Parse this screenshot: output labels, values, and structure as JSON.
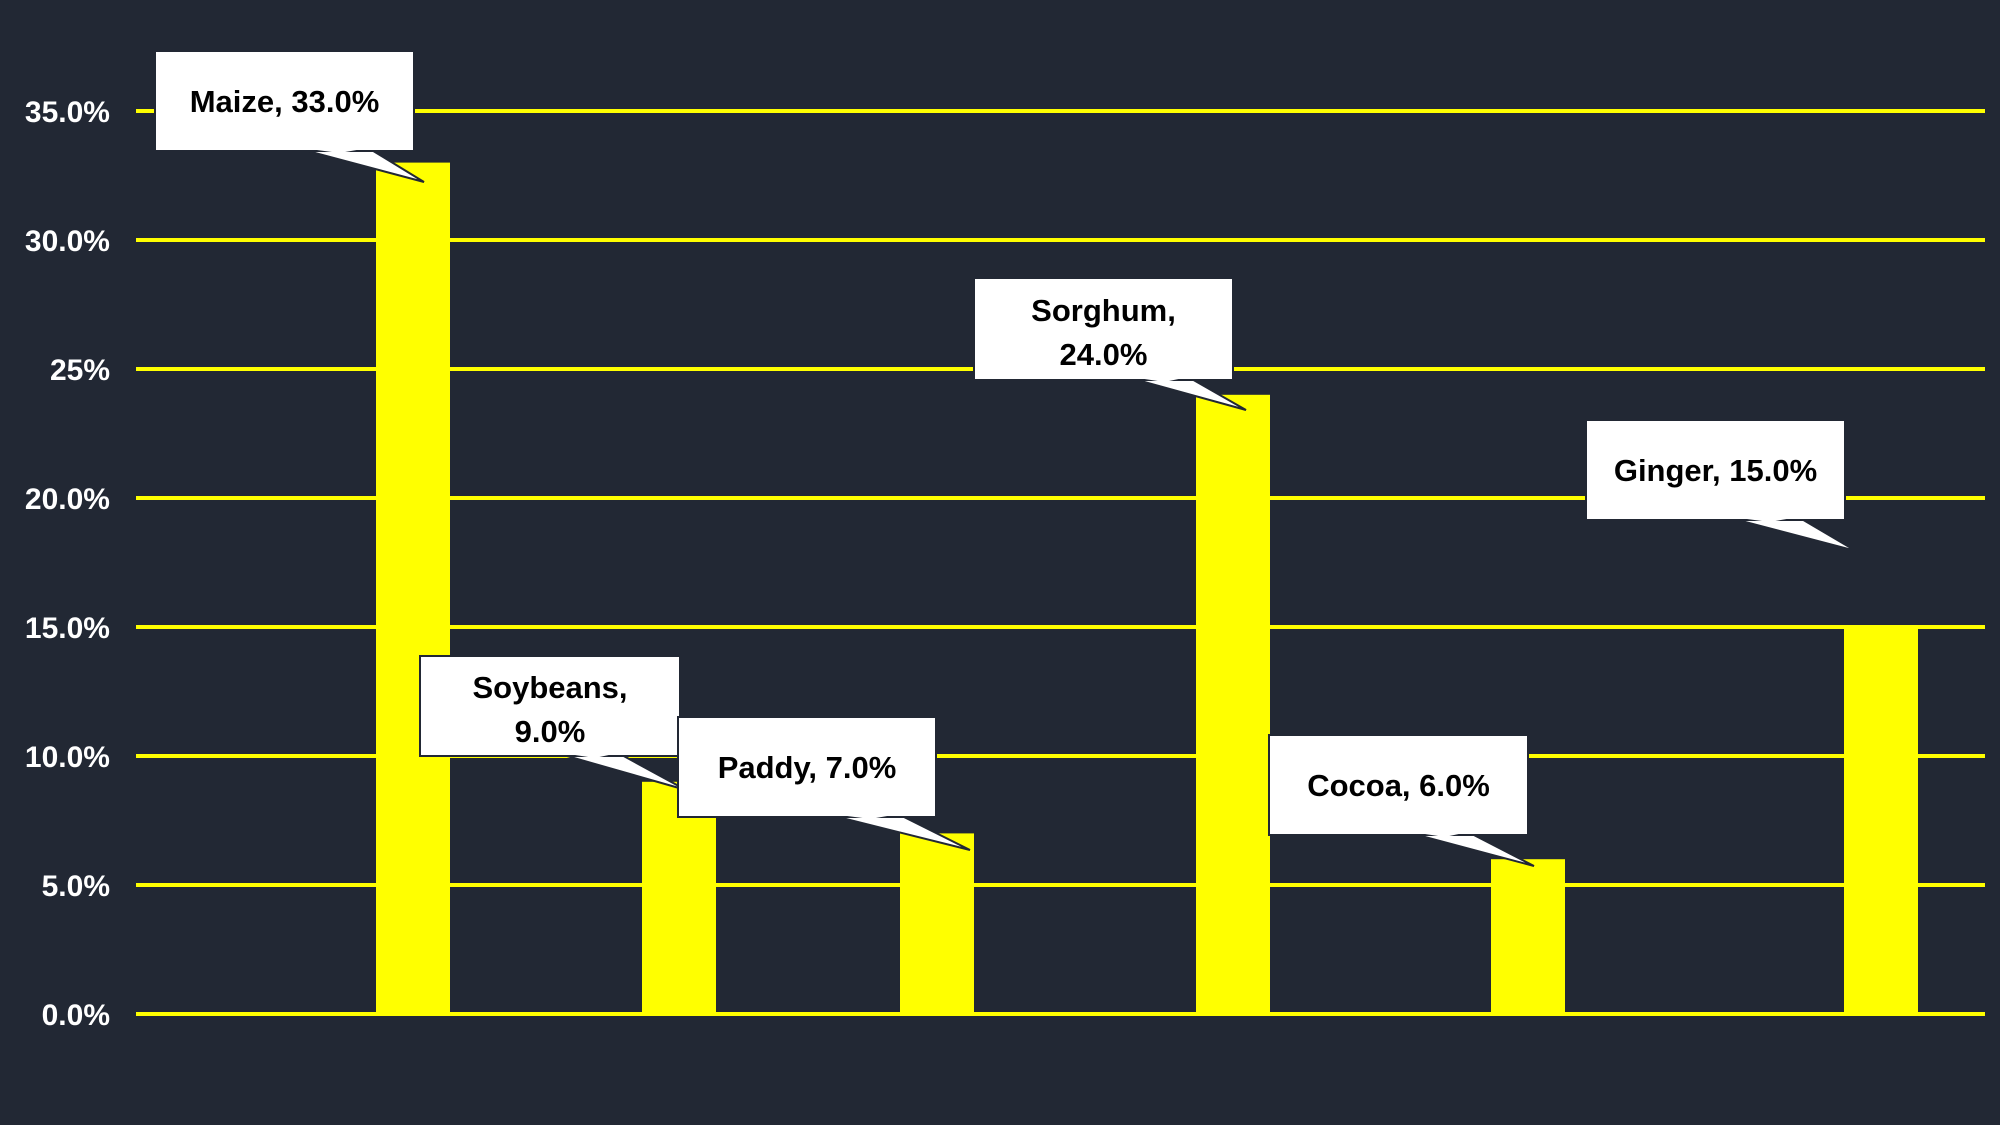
{
  "chart_data": {
    "type": "bar",
    "categories": [
      "Maize",
      "Soybeans",
      "Paddy",
      "Sorghum",
      "Cocoa",
      "Ginger"
    ],
    "values": [
      33.0,
      9.0,
      7.0,
      24.0,
      6.0,
      15.0
    ],
    "value_labels": [
      "Maize, 33.0%",
      "Soybeans, 9.0%",
      "Paddy, 7.0%",
      "Sorghum, 24.0%",
      "Cocoa, 6.0%",
      "Ginger, 15.0%"
    ],
    "ylim": [
      0,
      35
    ],
    "yticks": [
      0,
      5,
      10,
      15,
      20,
      25,
      30,
      35
    ],
    "ytick_labels": [
      "0.0%",
      "5.0%",
      "10.0%",
      "15.0%",
      "20.0%",
      "25%",
      "30.0%",
      "35.0%"
    ],
    "title": "",
    "xlabel": "",
    "ylabel": "",
    "grid": true,
    "colors": {
      "background": "#222834",
      "bar": "#FFFF00",
      "gridline": "#FFFF00",
      "tick_text": "#FFFFFF",
      "callout_fill": "#FFFFFF",
      "callout_border": "#222834",
      "callout_text": "#000000"
    }
  }
}
